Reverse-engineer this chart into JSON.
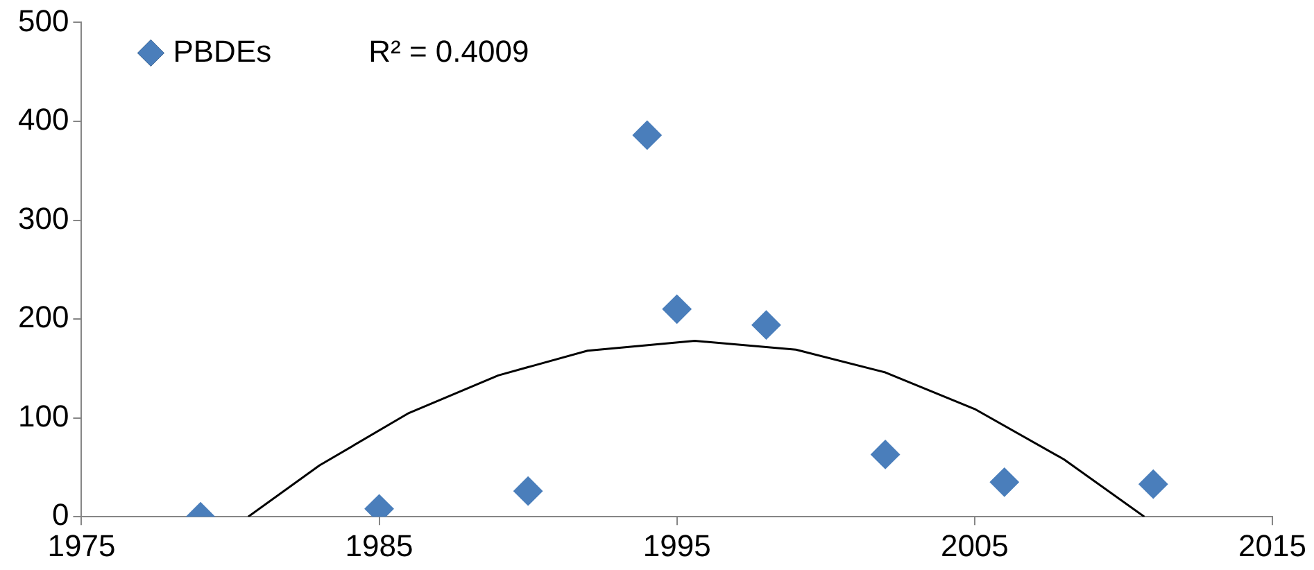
{
  "chart_data": {
    "type": "scatter",
    "marker": "diamond",
    "legend": "top left",
    "grid": false,
    "xlim": [
      1975,
      2015
    ],
    "xticks": [
      1975,
      1985,
      1995,
      2005,
      2015
    ],
    "ylim": [
      0,
      500
    ],
    "yticks": [
      0,
      100,
      200,
      300,
      400,
      500
    ],
    "annotations": [
      "R² = 0.4009"
    ],
    "series": [
      {
        "name": "PBDEs",
        "color": "#4a7ebb",
        "x": [
          1979,
          1985,
          1990,
          1994,
          1995,
          1998,
          2002,
          2006,
          2011
        ],
        "values": [
          0,
          8,
          26,
          386,
          210,
          194,
          63,
          35,
          33
        ]
      },
      {
        "type": "line",
        "color": "#000000",
        "marker": "none",
        "x": [
          1980.6,
          1983,
          1986,
          1989,
          1992,
          1995.6,
          1999,
          2002,
          2005,
          2008,
          2010.7
        ],
        "values": [
          0,
          52,
          105,
          143,
          168,
          178,
          169,
          146,
          109,
          58,
          0
        ]
      }
    ]
  }
}
